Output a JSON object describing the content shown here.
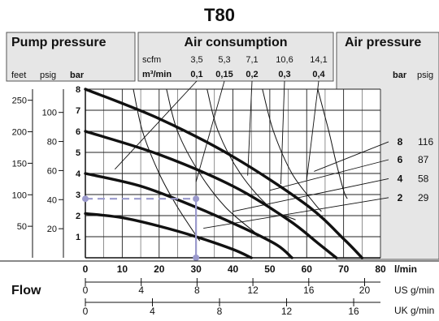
{
  "title": "T80",
  "header": {
    "pump_pressure": "Pump pressure",
    "air_consumption": "Air consumption",
    "air_pressure": "Air pressure",
    "left_units": {
      "feet": "feet",
      "psig": "psig",
      "bar": "bar"
    },
    "right_units": {
      "bar": "bar",
      "psig": "psig"
    },
    "scfm_label": "scfm",
    "scfm_values": [
      "3,5",
      "5,3",
      "7,1",
      "10,6",
      "14,1"
    ],
    "m3_label": "m³/min",
    "m3_values": [
      "0,1",
      "0,15",
      "0,2",
      "0,3",
      "0,4"
    ]
  },
  "flow_label": "Flow",
  "colors": {
    "ink": "#111111",
    "panel": "#e6e6e6",
    "example": "#9a99cc"
  },
  "chart_data": {
    "type": "line",
    "title": "T80",
    "xlabel": "l/min",
    "ylabel": "bar",
    "xlim": [
      0,
      80
    ],
    "ylim": [
      0,
      8
    ],
    "x_ticks": [
      "0",
      "10",
      "20",
      "30",
      "40",
      "50",
      "60",
      "70",
      "80"
    ],
    "y_ticks": [
      "1",
      "2",
      "3",
      "4",
      "5",
      "6",
      "7",
      "8"
    ],
    "grid": true,
    "feet_ticks": [
      "250",
      "200",
      "150",
      "100",
      "50"
    ],
    "psig_ticks": [
      "100",
      "80",
      "60",
      "40",
      "20"
    ],
    "us_gpm_label": "US g/min",
    "us_gpm_ticks": [
      "0",
      "4",
      "8",
      "12",
      "16",
      "20"
    ],
    "uk_gpm_label": "UK g/min",
    "uk_gpm_ticks": [
      "0",
      "4",
      "8",
      "12",
      "16"
    ],
    "series": [
      {
        "name": "8",
        "psig": "116",
        "x": [
          0,
          20,
          40,
          60,
          70,
          75
        ],
        "y": [
          8,
          6.6,
          4.8,
          2.5,
          0.9,
          0
        ]
      },
      {
        "name": "6",
        "psig": "87",
        "x": [
          0,
          20,
          40,
          55,
          63,
          68
        ],
        "y": [
          6,
          4.9,
          3.4,
          1.8,
          0.7,
          0
        ]
      },
      {
        "name": "4",
        "psig": "58",
        "x": [
          0,
          15,
          30,
          43,
          52,
          56
        ],
        "y": [
          4,
          3.4,
          2.4,
          1.4,
          0.6,
          0
        ]
      },
      {
        "name": "2",
        "psig": "29",
        "x": [
          0,
          10,
          20,
          30,
          40,
          45
        ],
        "y": [
          2.1,
          1.9,
          1.5,
          1,
          0.4,
          0
        ]
      }
    ],
    "air_consumption_curves": [
      {
        "label": "0,1",
        "x": [
          13,
          15.5,
          20,
          25,
          31
        ],
        "y": [
          8,
          6,
          4,
          2.4,
          0.8
        ]
      },
      {
        "label": "0,15",
        "x": [
          22,
          25,
          31,
          38,
          46
        ],
        "y": [
          8,
          6,
          4,
          2.4,
          1.2
        ]
      },
      {
        "label": "0,2",
        "x": [
          33,
          36,
          42,
          50,
          57
        ],
        "y": [
          8,
          6,
          4,
          2.4,
          1.8
        ]
      },
      {
        "label": "0,3",
        "x": [
          48,
          51,
          56,
          62,
          64
        ],
        "y": [
          8,
          6,
          4,
          2.6,
          2.2
        ]
      },
      {
        "label": "0,4",
        "x": [
          63,
          66,
          68,
          70,
          71
        ],
        "y": [
          8,
          6,
          4.5,
          3.2,
          2.8
        ]
      }
    ],
    "example": {
      "flow": 30,
      "pressure": 2.8
    }
  }
}
